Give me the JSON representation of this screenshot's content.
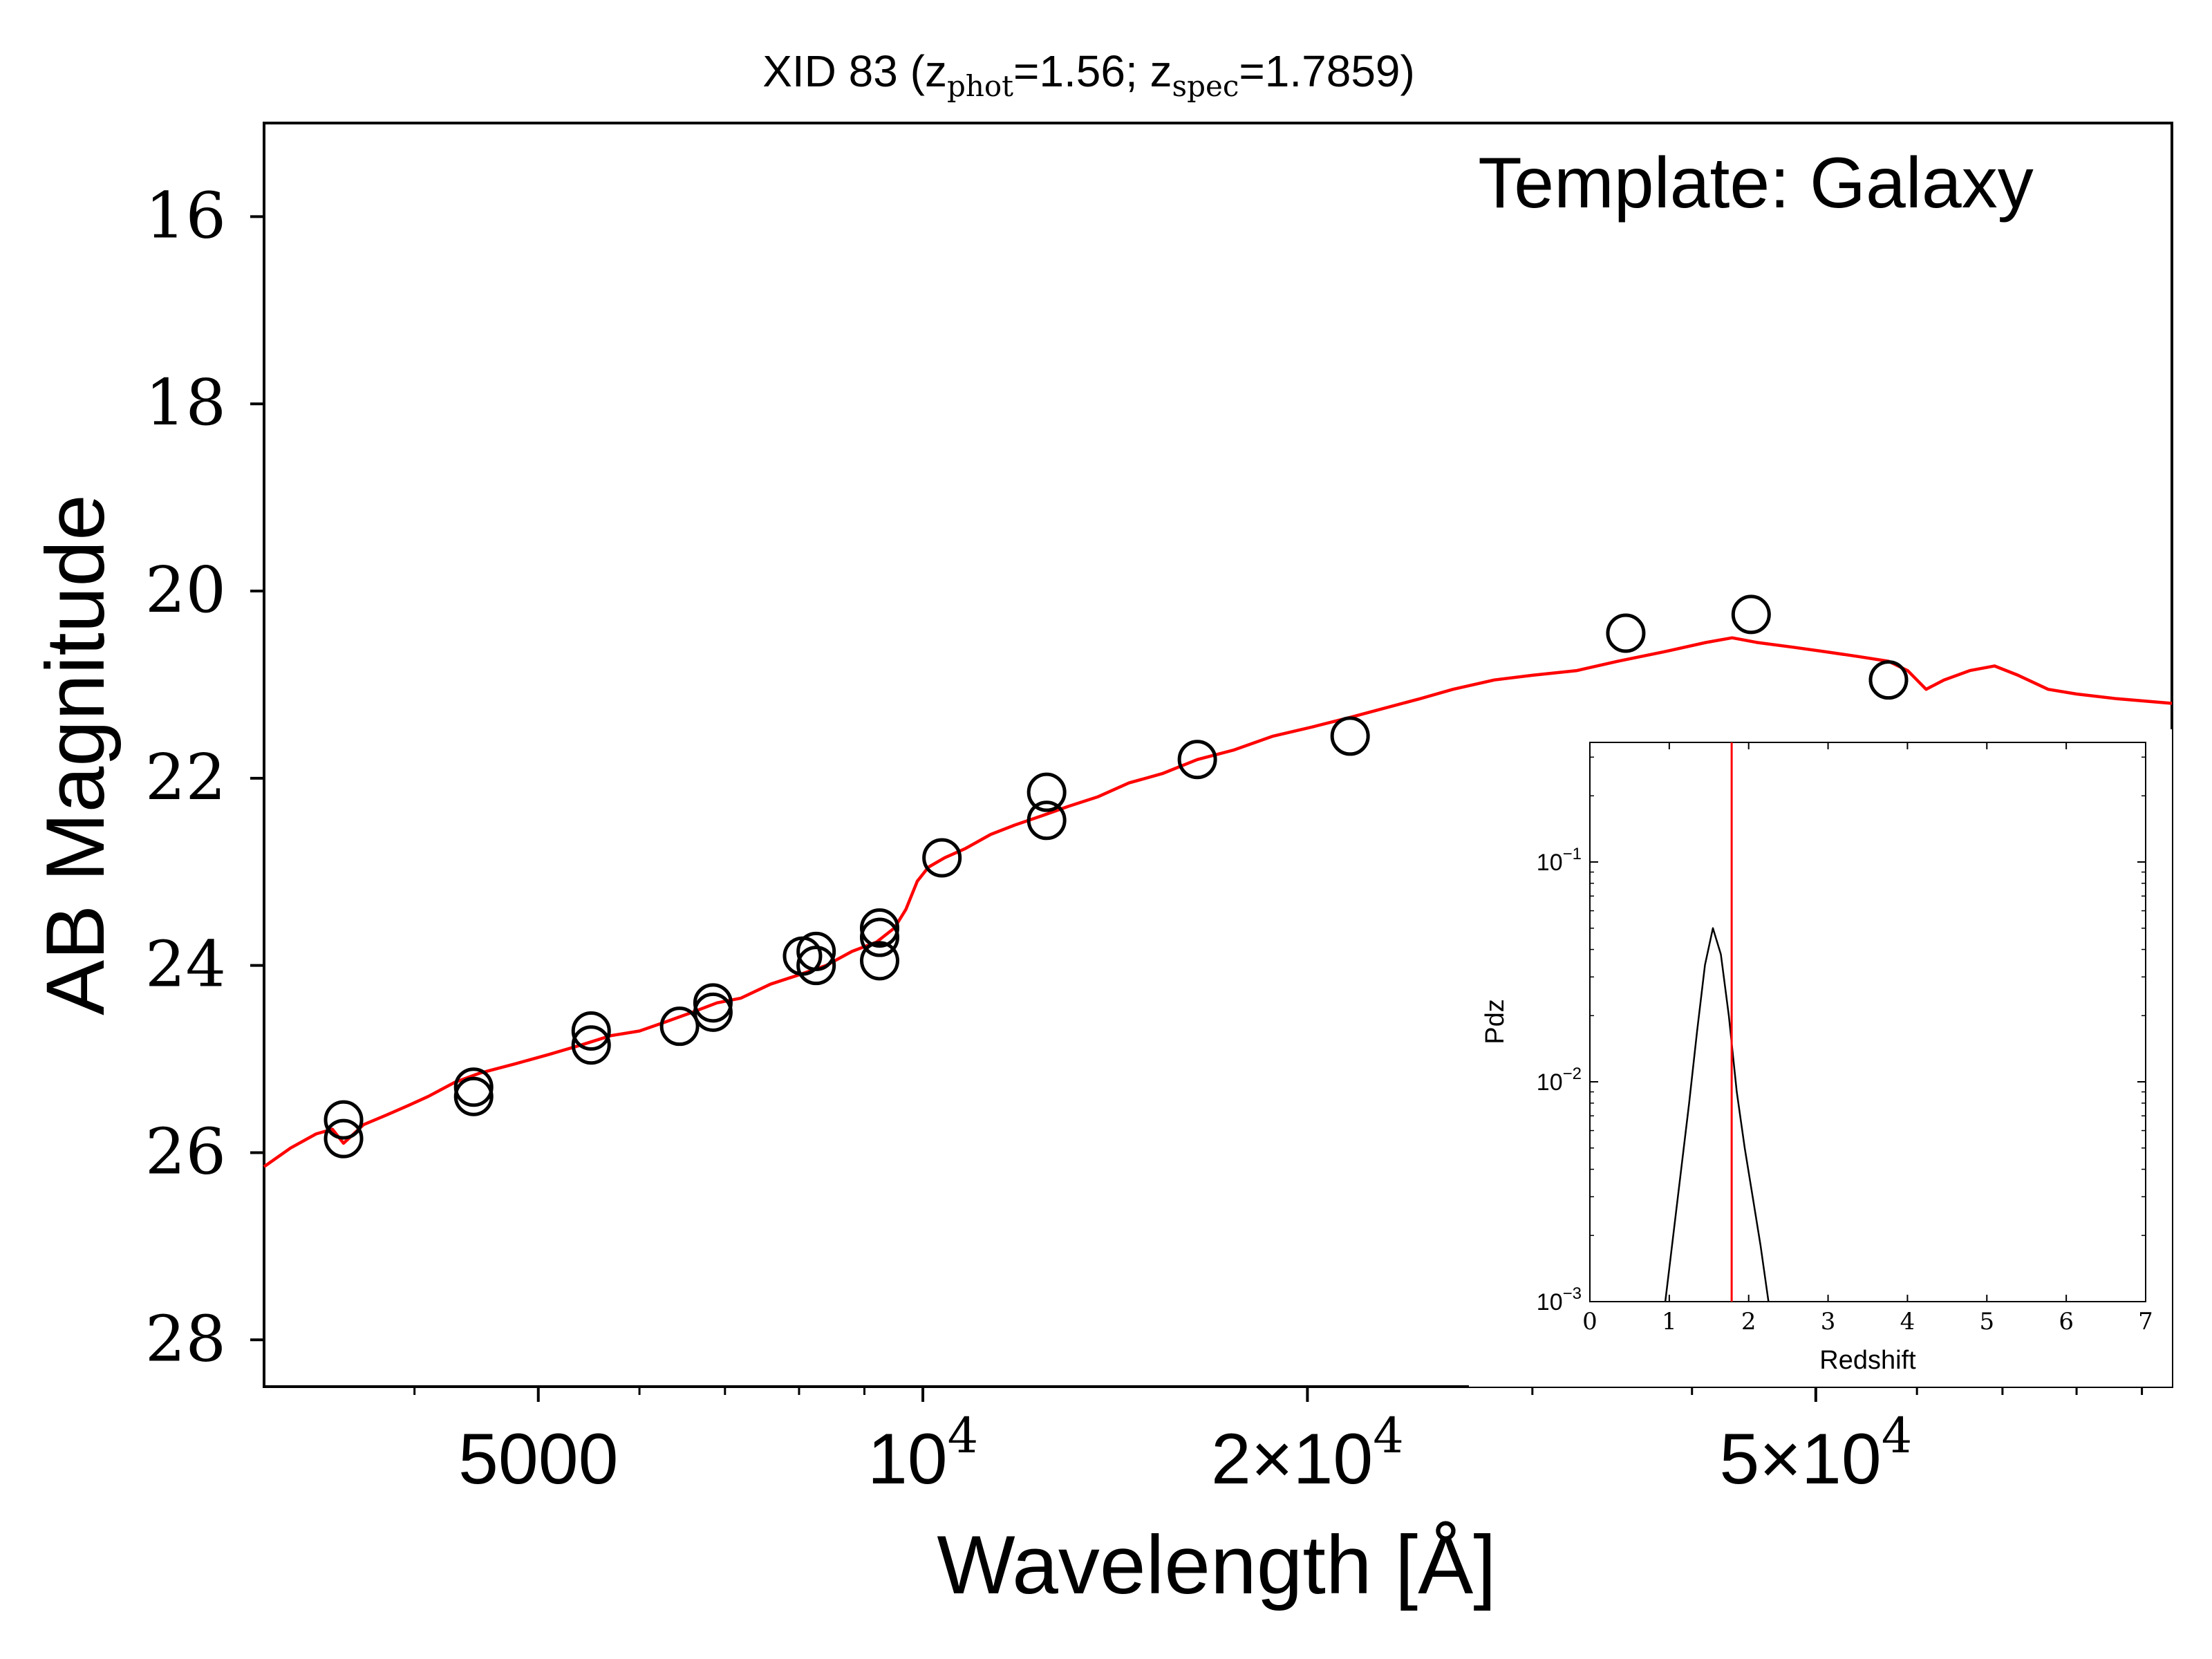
{
  "chart_data": [
    {
      "type": "scatter",
      "title_prefix": "XID 83 (z",
      "title_sub1": "phot",
      "title_mid": "=1.56; z",
      "title_sub2": "spec",
      "title_suffix": "=1.7859)",
      "annotation": "Template: Galaxy",
      "xlabel": "Wavelength [Å]",
      "ylabel": "AB Magnitude",
      "xscale": "log",
      "xlim": [
        3050,
        95000
      ],
      "ylim": [
        28.5,
        15
      ],
      "y_inverted": true,
      "yticks": [
        16,
        18,
        20,
        22,
        24,
        26,
        28
      ],
      "xticks": [
        {
          "value": 5000,
          "label": "5000",
          "mantissa": "",
          "exponent": ""
        },
        {
          "value": 10000,
          "label": "",
          "mantissa": "10",
          "exponent": "4",
          "prefix": ""
        },
        {
          "value": 20000,
          "label": "",
          "mantissa": "10",
          "exponent": "4",
          "prefix": "2×"
        },
        {
          "value": 50000,
          "label": "",
          "mantissa": "10",
          "exponent": "4",
          "prefix": "5×"
        }
      ],
      "grid": false,
      "colors": {
        "model": "#ff0000",
        "observed": "#000000"
      },
      "series": [
        {
          "marker": "open-circle",
          "points": [
            [
              3520,
              25.85
            ],
            [
              3520,
              25.65
            ],
            [
              4450,
              25.4
            ],
            [
              4450,
              25.3
            ],
            [
              5500,
              24.85
            ],
            [
              5500,
              24.7
            ],
            [
              6450,
              24.65
            ],
            [
              6850,
              24.5
            ],
            [
              6850,
              24.4
            ],
            [
              8050,
              23.9
            ],
            [
              8250,
              24.0
            ],
            [
              8250,
              23.85
            ],
            [
              9250,
              23.95
            ],
            [
              9250,
              23.7
            ],
            [
              9250,
              23.6
            ],
            [
              10350,
              22.85
            ],
            [
              12500,
              22.45
            ],
            [
              12500,
              22.15
            ],
            [
              16400,
              21.8
            ],
            [
              21600,
              21.55
            ],
            [
              35500,
              20.45
            ],
            [
              44500,
              20.25
            ],
            [
              57000,
              20.95
            ]
          ]
        },
        {
          "style": "line",
          "points": [
            [
              3050,
              26.15
            ],
            [
              3200,
              25.95
            ],
            [
              3350,
              25.8
            ],
            [
              3450,
              25.75
            ],
            [
              3520,
              25.9
            ],
            [
              3650,
              25.7
            ],
            [
              3800,
              25.6
            ],
            [
              3950,
              25.5
            ],
            [
              4100,
              25.4
            ],
            [
              4300,
              25.25
            ],
            [
              4500,
              25.15
            ],
            [
              4800,
              25.05
            ],
            [
              5100,
              24.95
            ],
            [
              5400,
              24.85
            ],
            [
              5700,
              24.75
            ],
            [
              6000,
              24.7
            ],
            [
              6300,
              24.6
            ],
            [
              6600,
              24.5
            ],
            [
              6900,
              24.4
            ],
            [
              7200,
              24.35
            ],
            [
              7600,
              24.2
            ],
            [
              8000,
              24.1
            ],
            [
              8400,
              24.0
            ],
            [
              8800,
              23.85
            ],
            [
              9200,
              23.75
            ],
            [
              9500,
              23.6
            ],
            [
              9700,
              23.4
            ],
            [
              9900,
              23.1
            ],
            [
              10100,
              22.95
            ],
            [
              10400,
              22.85
            ],
            [
              10800,
              22.75
            ],
            [
              11300,
              22.6
            ],
            [
              11800,
              22.5
            ],
            [
              12400,
              22.4
            ],
            [
              13000,
              22.3
            ],
            [
              13700,
              22.2
            ],
            [
              14500,
              22.05
            ],
            [
              15400,
              21.95
            ],
            [
              16400,
              21.8
            ],
            [
              17500,
              21.7
            ],
            [
              18800,
              21.55
            ],
            [
              20200,
              21.45
            ],
            [
              21600,
              21.35
            ],
            [
              23000,
              21.25
            ],
            [
              24500,
              21.15
            ],
            [
              26000,
              21.05
            ],
            [
              28000,
              20.95
            ],
            [
              30000,
              20.9
            ],
            [
              32500,
              20.85
            ],
            [
              35000,
              20.75
            ],
            [
              38000,
              20.65
            ],
            [
              41000,
              20.55
            ],
            [
              43000,
              20.5
            ],
            [
              45000,
              20.55
            ],
            [
              48000,
              20.6
            ],
            [
              51000,
              20.65
            ],
            [
              54000,
              20.7
            ],
            [
              57000,
              20.75
            ],
            [
              59000,
              20.85
            ],
            [
              61000,
              21.05
            ],
            [
              63000,
              20.95
            ],
            [
              66000,
              20.85
            ],
            [
              69000,
              20.8
            ],
            [
              72000,
              20.9
            ],
            [
              76000,
              21.05
            ],
            [
              80000,
              21.1
            ],
            [
              86000,
              21.15
            ],
            [
              95000,
              21.2
            ]
          ]
        }
      ]
    },
    {
      "type": "line",
      "inset": true,
      "xlabel": "Redshift",
      "ylabel": "Pdz",
      "xlim": [
        0,
        7
      ],
      "xticks": [
        0,
        1,
        2,
        3,
        4,
        5,
        6,
        7
      ],
      "yscale": "log",
      "ylim": [
        0.001,
        0.35
      ],
      "yticks": [
        {
          "value": 0.1,
          "mantissa": "10",
          "exponent": "−1"
        },
        {
          "value": 0.01,
          "mantissa": "10",
          "exponent": "−2"
        },
        {
          "value": 0.001,
          "mantissa": "10",
          "exponent": "−3"
        }
      ],
      "vline_x": 1.7859,
      "vline_color": "#ff0000",
      "line_color": "#000000",
      "points": [
        [
          0.95,
          0.001
        ],
        [
          1.05,
          0.002
        ],
        [
          1.15,
          0.004
        ],
        [
          1.25,
          0.008
        ],
        [
          1.35,
          0.017
        ],
        [
          1.45,
          0.034
        ],
        [
          1.55,
          0.05
        ],
        [
          1.65,
          0.038
        ],
        [
          1.75,
          0.02
        ],
        [
          1.85,
          0.009
        ],
        [
          1.95,
          0.005
        ],
        [
          2.05,
          0.003
        ],
        [
          2.15,
          0.0018
        ],
        [
          2.25,
          0.001
        ]
      ]
    }
  ]
}
